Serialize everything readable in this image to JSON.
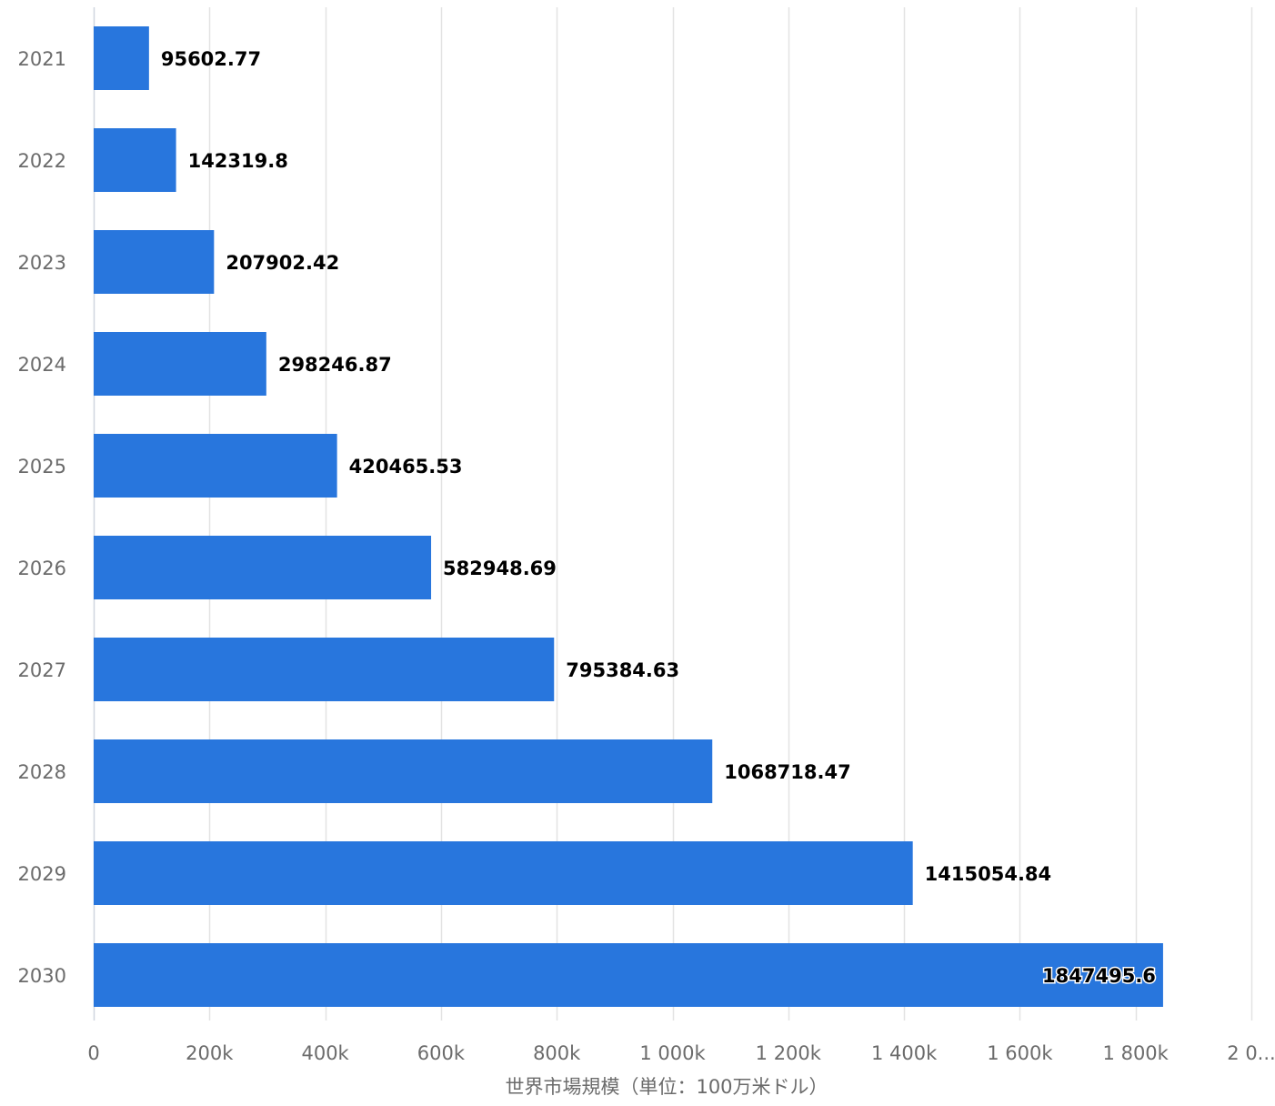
{
  "chart_data": {
    "type": "bar",
    "orientation": "horizontal",
    "categories": [
      "2021",
      "2022",
      "2023",
      "2024",
      "2025",
      "2026",
      "2027",
      "2028",
      "2029",
      "2030"
    ],
    "series": [
      {
        "values": [
          95602.77,
          142319.8,
          207902.42,
          298246.87,
          420465.53,
          582948.69,
          795384.63,
          1068718.47,
          1415054.84,
          1847495.6
        ]
      }
    ],
    "data_labels": [
      "95602.77",
      "142319.8",
      "207902.42",
      "298246.87",
      "420465.53",
      "582948.69",
      "795384.63",
      "1068718.47",
      "1415054.84",
      "1847495.6"
    ],
    "xlabel": "世界市場規模（単位：100万米ドル）",
    "ylabel": "",
    "xlim": [
      0,
      2000000
    ],
    "x_ticks": [
      0,
      200000,
      400000,
      600000,
      800000,
      1000000,
      1200000,
      1400000,
      1600000,
      1800000,
      2000000
    ],
    "x_tick_labels": [
      "0",
      "200k",
      "400k",
      "600k",
      "800k",
      "1 000k",
      "1 200k",
      "1 400k",
      "1 600k",
      "1 800k",
      "2 0..."
    ],
    "grid": true,
    "bar_color": "#2876dd"
  }
}
